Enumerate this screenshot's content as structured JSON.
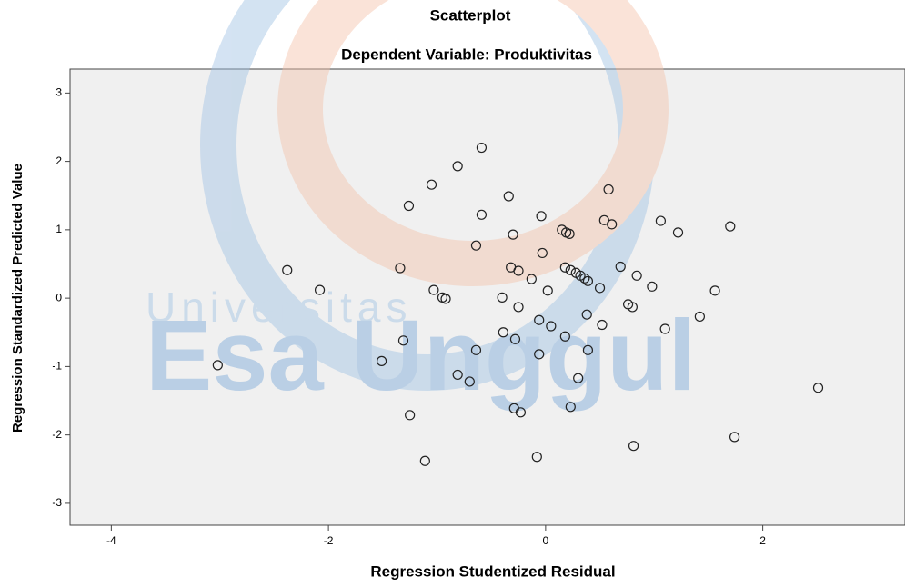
{
  "chart_data": {
    "type": "scatter",
    "title": "Scatterplot",
    "subtitle": "Dependent Variable: Produktivitas",
    "x_label": "Regression Studentized Residual",
    "y_label": "Regression Standardized Predicted Value",
    "watermark": [
      "Universitas",
      "Esa Unggul"
    ],
    "color": "#222222",
    "xlim": [
      -4.38,
      3.31
    ],
    "ylim": [
      -3.32,
      3.35
    ],
    "xticks": [
      -4,
      -2,
      0,
      2
    ],
    "yticks": [
      -3,
      -2,
      -1,
      0,
      1,
      2,
      3
    ],
    "x": [
      -0.59,
      -0.81,
      -1.05,
      -0.34,
      0.58,
      -1.26,
      -0.59,
      -0.04,
      0.54,
      0.61,
      1.06,
      1.22,
      1.7,
      0.15,
      0.19,
      0.22,
      -0.3,
      -0.64,
      -0.03,
      -2.38,
      -1.34,
      -0.32,
      -0.25,
      0.18,
      0.23,
      0.28,
      0.32,
      0.36,
      0.39,
      0.69,
      0.84,
      -0.13,
      0.98,
      0.5,
      -2.08,
      -1.03,
      0.02,
      1.56,
      -0.92,
      -0.95,
      -0.4,
      -0.25,
      0.76,
      0.8,
      0.38,
      -0.06,
      0.05,
      0.52,
      1.1,
      1.42,
      -0.39,
      0.18,
      -0.28,
      -1.31,
      -0.64,
      0.39,
      -0.06,
      -3.02,
      -1.51,
      -0.81,
      -0.7,
      0.3,
      2.51,
      -0.29,
      -0.23,
      0.23,
      -1.25,
      1.74,
      0.81,
      -0.08,
      -1.11
    ],
    "values": [
      2.2,
      1.93,
      1.66,
      1.49,
      1.59,
      1.35,
      1.22,
      1.2,
      1.14,
      1.08,
      1.13,
      0.96,
      1.05,
      1.0,
      0.96,
      0.94,
      0.93,
      0.77,
      0.66,
      0.41,
      0.44,
      0.45,
      0.4,
      0.45,
      0.41,
      0.37,
      0.33,
      0.29,
      0.25,
      0.46,
      0.33,
      0.28,
      0.17,
      0.15,
      0.12,
      0.12,
      0.11,
      0.11,
      -0.01,
      0.01,
      0.01,
      -0.13,
      -0.09,
      -0.13,
      -0.24,
      -0.32,
      -0.41,
      -0.39,
      -0.45,
      -0.27,
      -0.5,
      -0.56,
      -0.6,
      -0.62,
      -0.76,
      -0.76,
      -0.82,
      -0.98,
      -0.92,
      -1.12,
      -1.22,
      -1.17,
      -1.31,
      -1.61,
      -1.67,
      -1.59,
      -1.71,
      -2.03,
      -2.16,
      -2.32,
      -2.38
    ]
  }
}
